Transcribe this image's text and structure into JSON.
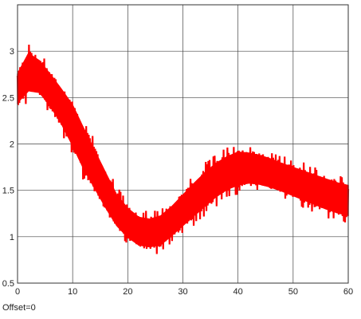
{
  "chart_data": {
    "type": "line",
    "title": "",
    "xlabel": "",
    "ylabel": "",
    "xlim": [
      0,
      60
    ],
    "ylim": [
      0.5,
      3.5
    ],
    "x_ticks": [
      0,
      10,
      20,
      30,
      40,
      50,
      60
    ],
    "y_ticks": [
      0.5,
      1,
      1.5,
      2,
      2.5,
      3
    ],
    "x_tick_labels": [
      "0",
      "10",
      "20",
      "30",
      "40",
      "50",
      "60"
    ],
    "y_tick_labels": [
      "0.5",
      "1",
      "1.5",
      "2",
      "2.5",
      "3"
    ],
    "grid": true,
    "legend": "none",
    "series": [
      {
        "color": "#ff0000",
        "envelope_x": [
          0,
          2,
          4,
          6,
          8,
          10,
          12,
          14,
          16,
          18,
          20,
          22,
          24,
          26,
          28,
          30,
          32,
          34,
          36,
          38,
          40,
          42,
          44,
          46,
          48,
          50,
          52,
          54,
          56,
          58,
          60
        ],
        "envelope_low": [
          2.35,
          2.45,
          2.45,
          2.3,
          2.1,
          1.85,
          1.6,
          1.4,
          1.2,
          1.02,
          0.9,
          0.82,
          0.8,
          0.82,
          0.92,
          1.02,
          1.12,
          1.22,
          1.32,
          1.4,
          1.45,
          1.48,
          1.47,
          1.44,
          1.4,
          1.35,
          1.3,
          1.25,
          1.2,
          1.16,
          1.13
        ],
        "envelope_high": [
          2.85,
          3.1,
          3.0,
          2.85,
          2.7,
          2.55,
          2.3,
          2.05,
          1.8,
          1.55,
          1.4,
          1.3,
          1.28,
          1.32,
          1.42,
          1.55,
          1.68,
          1.8,
          1.9,
          1.97,
          2.02,
          2.0,
          1.97,
          1.93,
          1.88,
          1.84,
          1.8,
          1.76,
          1.72,
          1.68,
          1.65
        ]
      }
    ]
  },
  "footer": {
    "offset_label": "Offset=0"
  }
}
